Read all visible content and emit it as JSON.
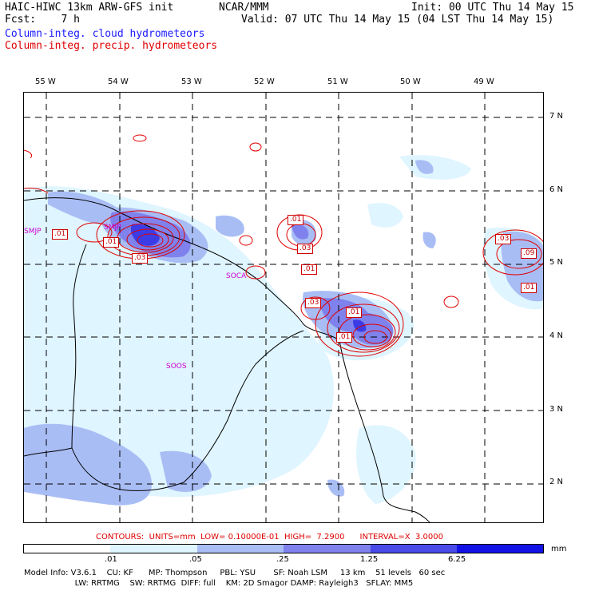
{
  "header": {
    "title_left": "HAIC-HIWC 13km ARW-GFS init",
    "center_org": "NCAR/MMM",
    "init": "Init: 00 UTC Thu 14 May 15",
    "fcst": "Fcst:    7 h",
    "valid": "Valid: 07 UTC Thu 14 May 15 (04 LST Thu 14 May 15)",
    "field_cloud": "Column-integ. cloud hydrometeors",
    "field_precip": "Column-integ. precip. hydrometeors"
  },
  "longitudes": [
    "55 W",
    "54 W",
    "53 W",
    "52 W",
    "51 W",
    "50 W",
    "49 W"
  ],
  "latitudes": [
    "7 N",
    "6 N",
    "5 N",
    "4 N",
    "3 N",
    "2 N"
  ],
  "stations": [
    "SMJP",
    "SMJP",
    "SOCA",
    "SOOS"
  ],
  "contour_labels": [
    ".01",
    ".01",
    ".01",
    ".03",
    ".01",
    ".03",
    ".01",
    ".03",
    ".01",
    ".03",
    ".09",
    ".01",
    ".03"
  ],
  "contours_info": "CONTOURS:  UNITS=mm  LOW= 0.10000E-01  HIGH=  7.2900      INTERVAL=X  3.0000",
  "colorbar": {
    "labels": [
      ".01",
      ".05",
      ".25",
      "1.25",
      "6.25"
    ],
    "unit": "mm",
    "colors": [
      "#ffffff",
      "#dff5ff",
      "#a9bdf5",
      "#7f82ec",
      "#4a4ae8",
      "#1212e6"
    ]
  },
  "model_info": {
    "line1": "Model Info: V3.6.1    CU: KF      MP: Thompson     PBL: YSU       SF: Noah LSM     13 km    51 levels   60 sec",
    "line2": "                    LW: RRTMG    SW: RRTMG  DIFF: full    KM: 2D Smagor DAMP: Rayleigh3   SFLAY: MM5"
  }
}
